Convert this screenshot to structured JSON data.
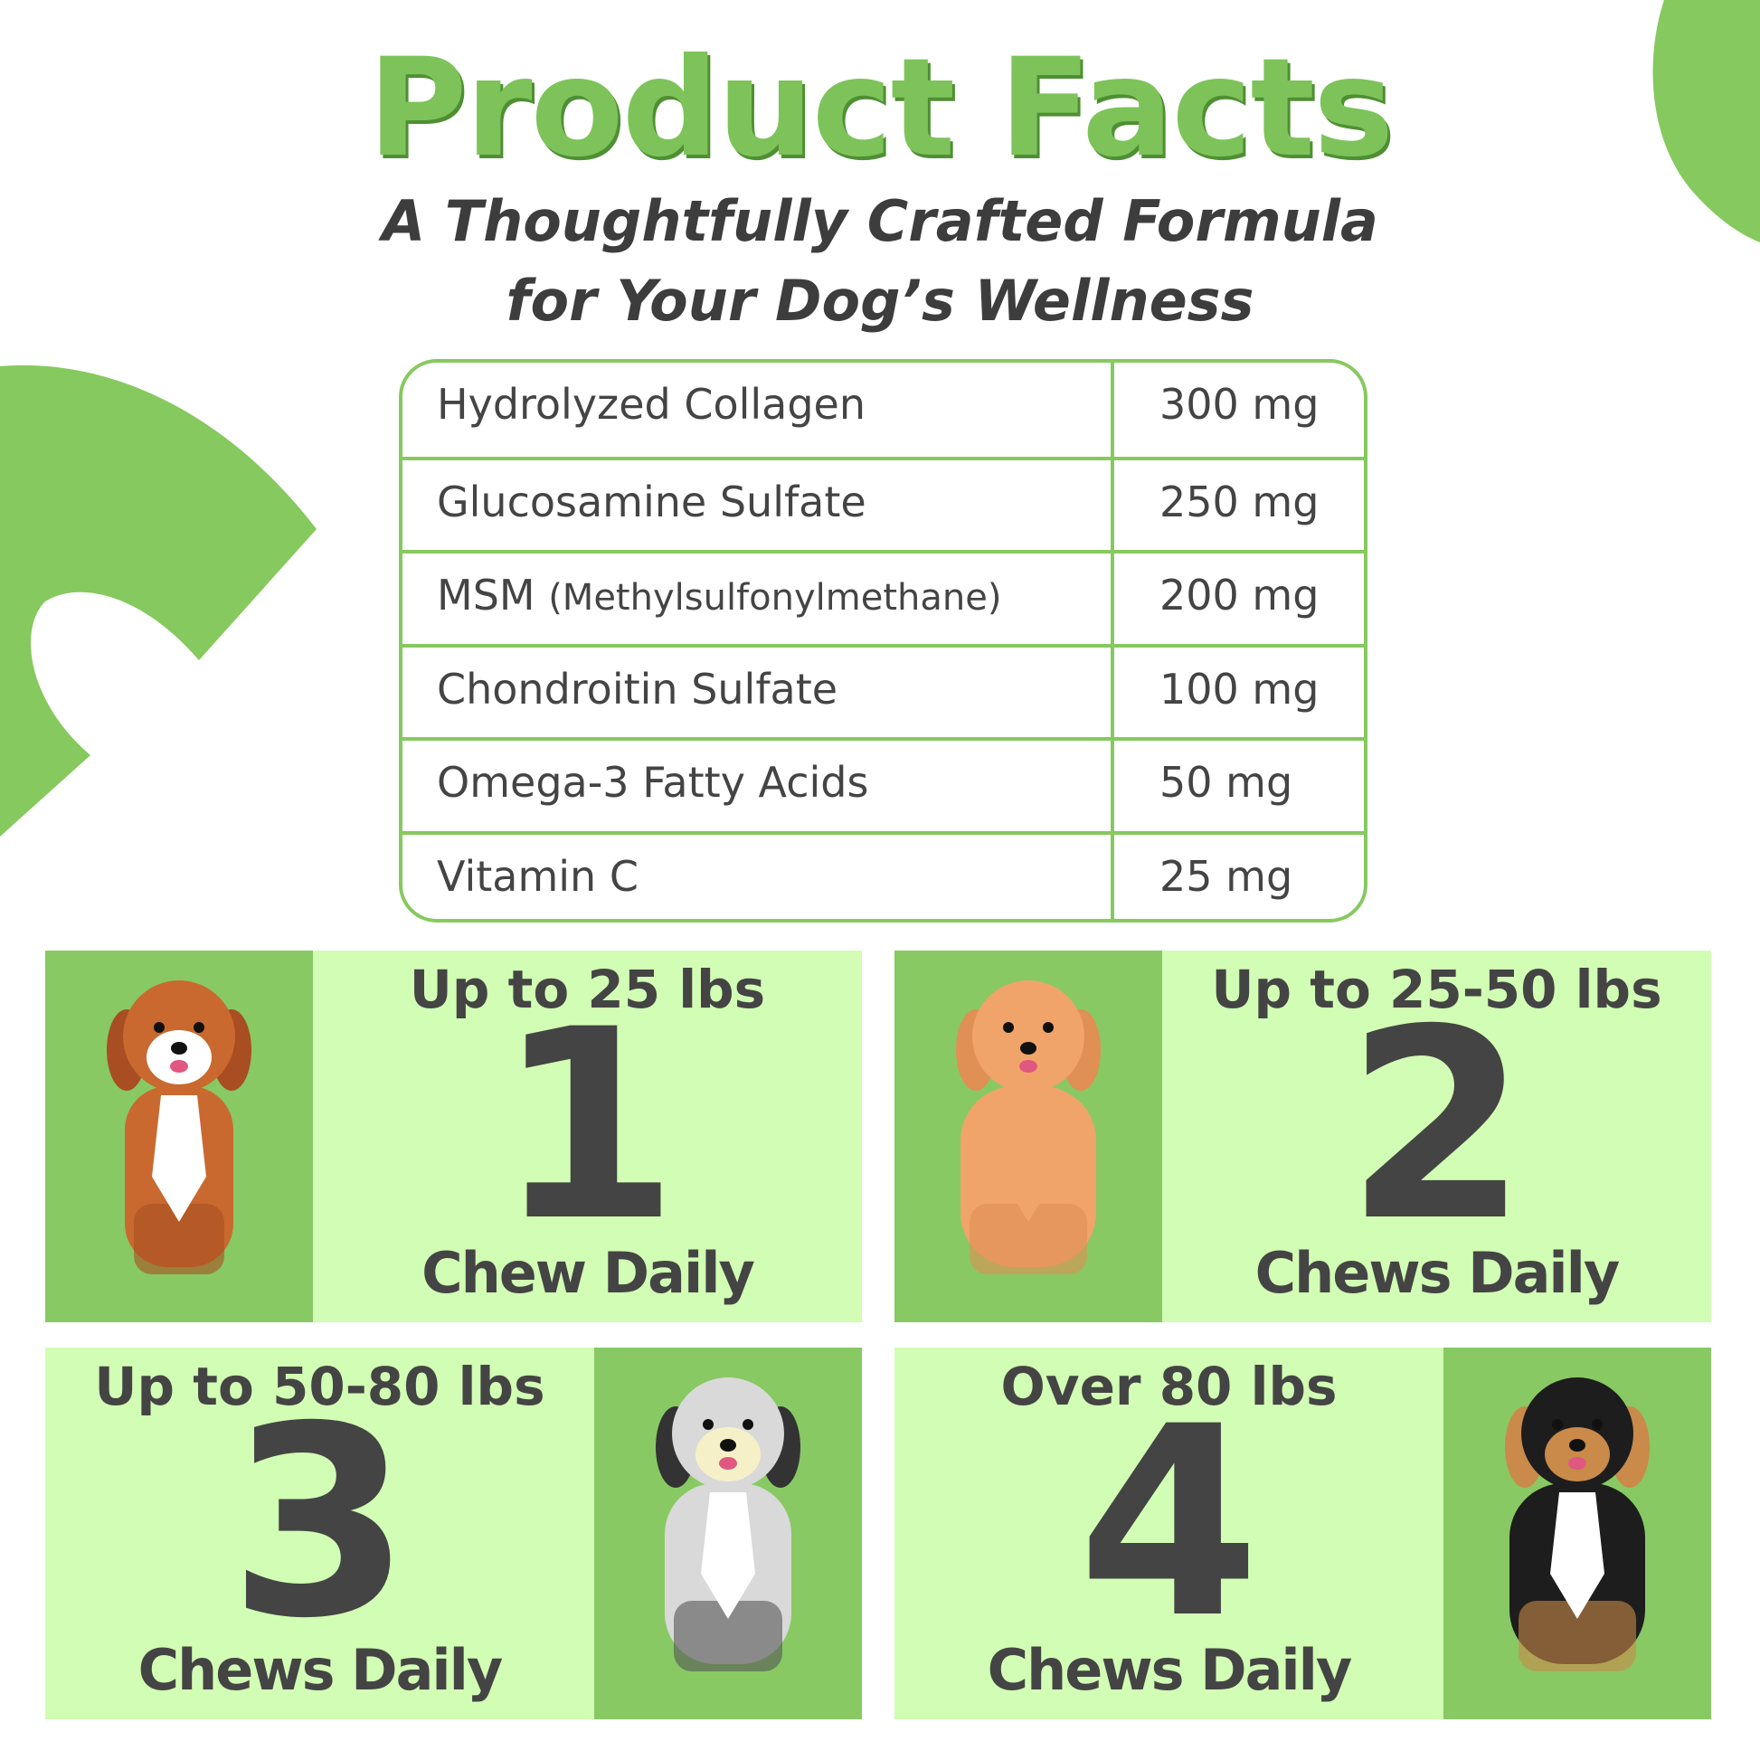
{
  "header": {
    "title": "Product Facts",
    "subtitle_line1": "A Thoughtfully Crafted Formula",
    "subtitle_line2": "for Your Dog’s Wellness"
  },
  "ingredients": [
    {
      "name": "Hydrolyzed Collagen",
      "note": "",
      "amount": "300 mg"
    },
    {
      "name": "Glucosamine Sulfate",
      "note": "",
      "amount": "250 mg"
    },
    {
      "name": "MSM",
      "note": "(Methylsulfonylmethane)",
      "amount": "200 mg"
    },
    {
      "name": "Chondroitin Sulfate",
      "note": "",
      "amount": "100 mg"
    },
    {
      "name": "Omega-3 Fatty Acids",
      "note": "",
      "amount": "50 mg"
    },
    {
      "name": "Vitamin C",
      "note": "",
      "amount": "25 mg"
    }
  ],
  "dosage": [
    {
      "weight": "Up to 25 lbs",
      "count": "1",
      "label": "Chew Daily"
    },
    {
      "weight": "Up to 25-50 lbs",
      "count": "2",
      "label": "Chews Daily"
    },
    {
      "weight": "Up to 50-80 lbs",
      "count": "3",
      "label": "Chews Daily"
    },
    {
      "weight": "Over 80 lbs",
      "count": "4",
      "label": "Chews Daily"
    }
  ],
  "colors": {
    "accent_green": "#7dc35a",
    "panel_green": "#88c963",
    "card_light_green": "#d2fdb4",
    "text_dark": "#444444"
  }
}
